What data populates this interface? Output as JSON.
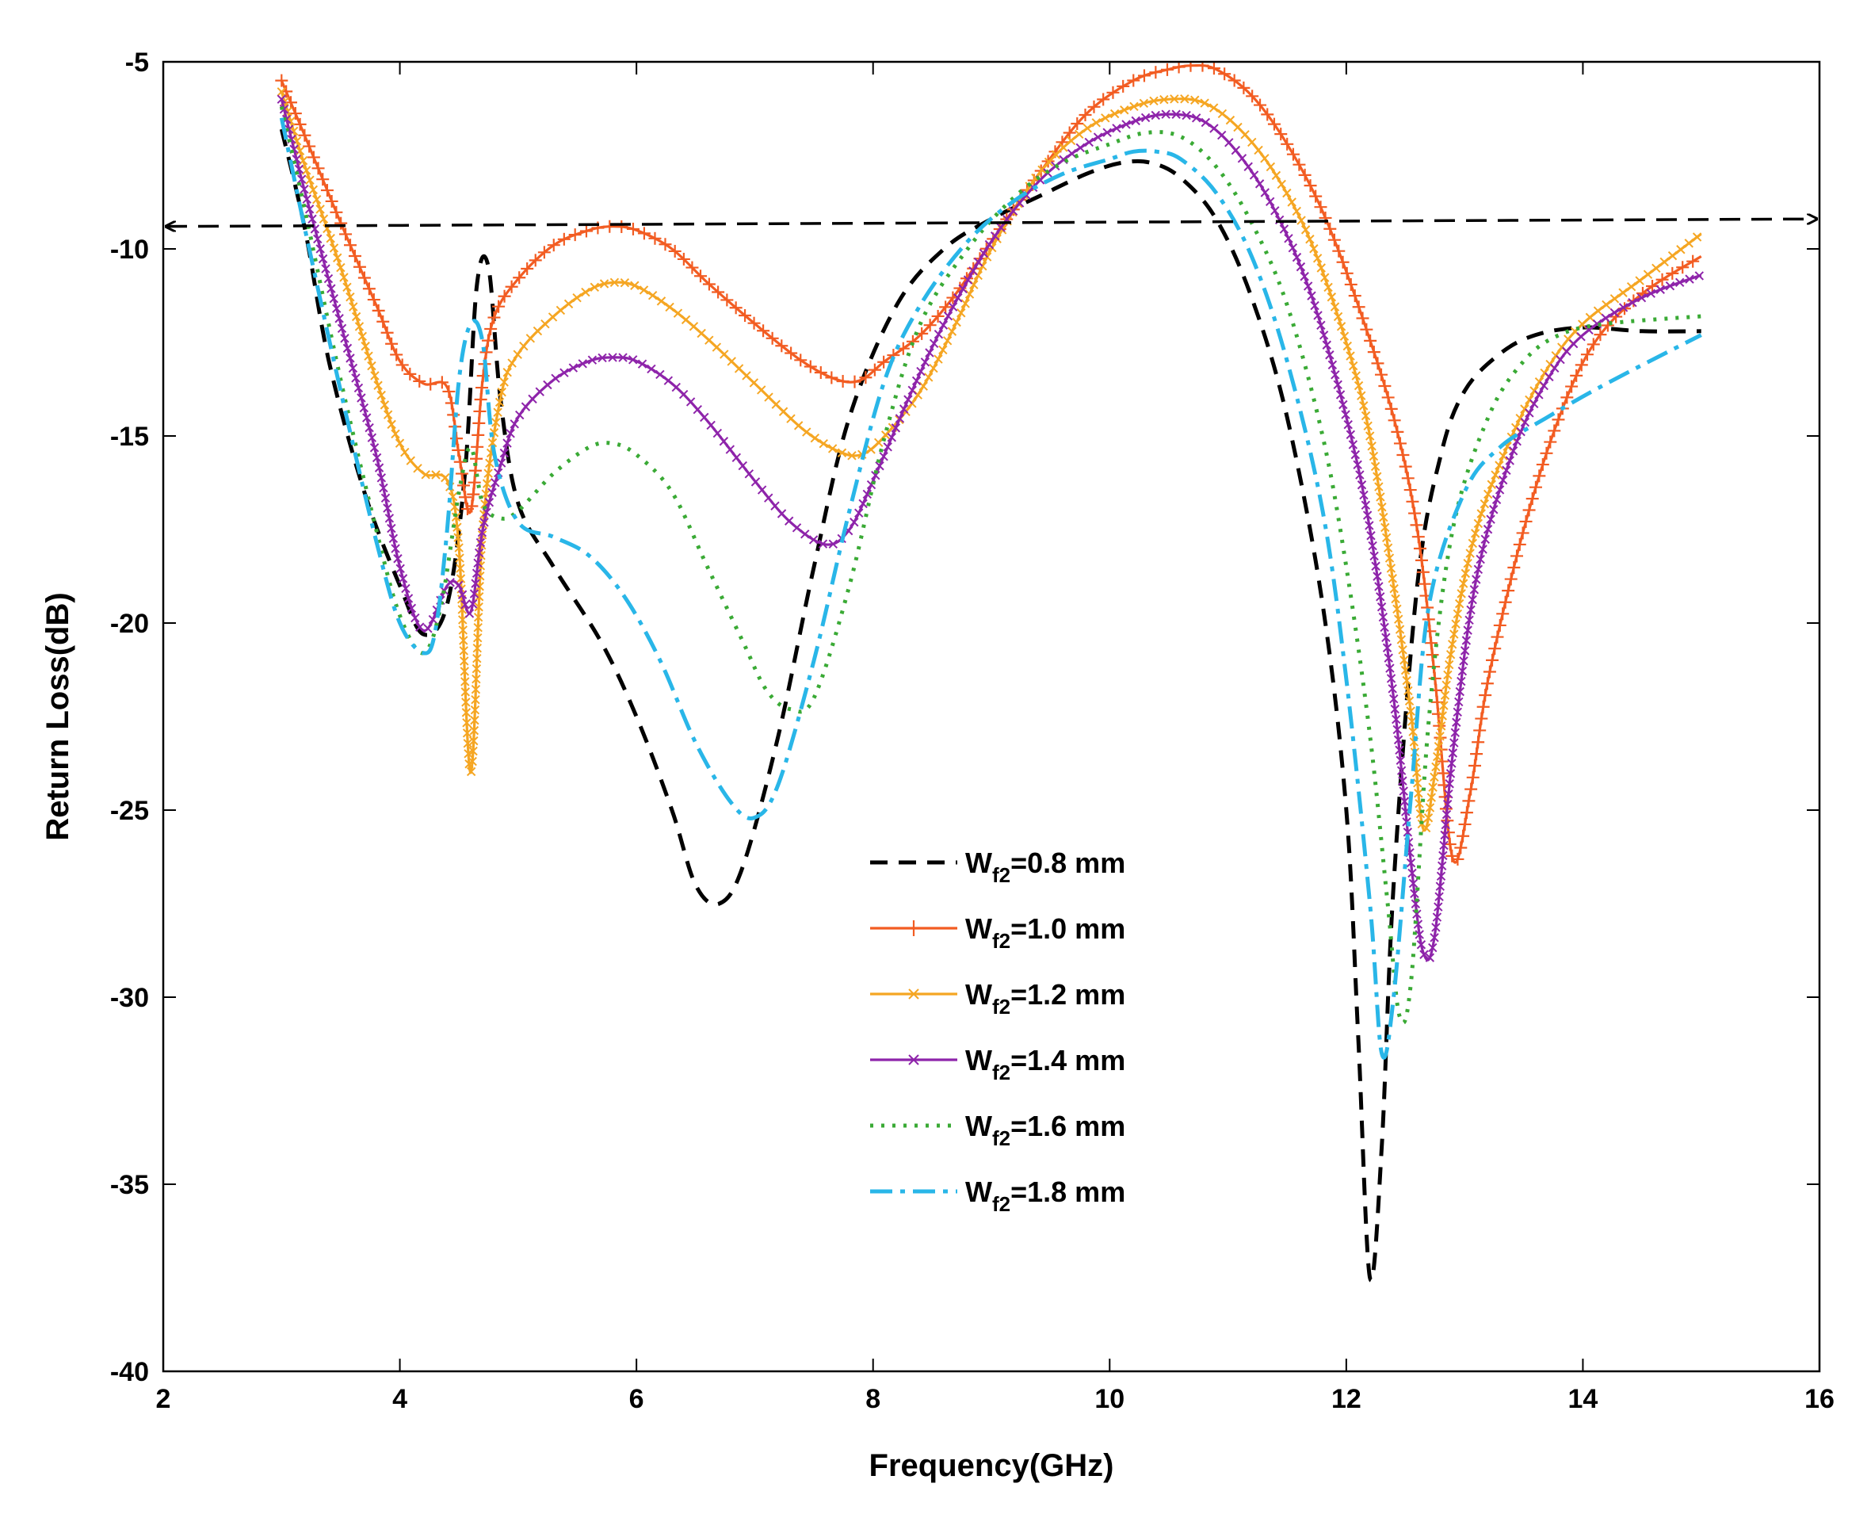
{
  "chart_data": {
    "type": "line",
    "title": "",
    "xlabel": "Frequency(GHz)",
    "ylabel": "Return Loss(dB)",
    "xlim": [
      2,
      16
    ],
    "ylim": [
      -40,
      -5
    ],
    "xticks": [
      2,
      4,
      6,
      8,
      10,
      12,
      14,
      16
    ],
    "yticks": [
      -5,
      -10,
      -15,
      -20,
      -25,
      -30,
      -35,
      -40
    ],
    "legend_position": "center",
    "reference_line": {
      "x": [
        2,
        16
      ],
      "y": [
        -9.4,
        -9.2
      ],
      "style": "dashed-double-arrow",
      "color": "#000000"
    },
    "series": [
      {
        "name": "W",
        "sub": "f2",
        "suffix": "=0.8 mm",
        "color": "#000000",
        "dash": "22,14",
        "marker": "none",
        "x": [
          3.0,
          3.2,
          3.4,
          3.7,
          4.0,
          4.2,
          4.4,
          4.55,
          4.65,
          4.75,
          4.85,
          5.0,
          5.3,
          5.7,
          6.0,
          6.3,
          6.5,
          6.7,
          6.9,
          7.2,
          7.5,
          7.8,
          8.2,
          8.6,
          9.0,
          9.4,
          9.8,
          10.1,
          10.35,
          10.6,
          10.9,
          11.2,
          11.5,
          11.8,
          12.0,
          12.1,
          12.2,
          12.3,
          12.4,
          12.6,
          12.8,
          13.0,
          13.3,
          13.6,
          14.0,
          14.5,
          15.0
        ],
        "y": [
          -6.8,
          -9.5,
          -13.0,
          -16.5,
          -19.0,
          -20.3,
          -19.5,
          -16.0,
          -11.0,
          -10.5,
          -14.0,
          -16.8,
          -18.5,
          -20.5,
          -22.5,
          -25.0,
          -27.0,
          -27.5,
          -26.5,
          -23.0,
          -18.5,
          -14.5,
          -11.5,
          -10.0,
          -9.2,
          -8.6,
          -8.0,
          -7.7,
          -7.7,
          -8.1,
          -9.2,
          -11.3,
          -14.5,
          -19.5,
          -25.0,
          -31.0,
          -37.5,
          -34.0,
          -27.0,
          -19.0,
          -15.5,
          -13.8,
          -12.8,
          -12.3,
          -12.1,
          -12.2,
          -12.2
        ]
      },
      {
        "name": "W",
        "sub": "f2",
        "suffix": "=1.0 mm",
        "color": "#f25c22",
        "dash": "",
        "marker": "plus",
        "x": [
          3.0,
          3.2,
          3.5,
          3.8,
          4.0,
          4.2,
          4.4,
          4.5,
          4.6,
          4.7,
          4.8,
          5.0,
          5.3,
          5.6,
          5.8,
          6.0,
          6.3,
          6.6,
          7.0,
          7.4,
          7.7,
          7.9,
          8.1,
          8.4,
          8.7,
          9.0,
          9.4,
          9.8,
          10.2,
          10.5,
          10.7,
          10.9,
          11.2,
          11.5,
          11.8,
          12.1,
          12.4,
          12.6,
          12.75,
          12.9,
          13.05,
          13.2,
          13.5,
          13.8,
          14.1,
          14.5,
          15.0
        ],
        "y": [
          -5.5,
          -7.0,
          -9.3,
          -11.5,
          -13.0,
          -13.6,
          -13.7,
          -15.5,
          -17.0,
          -13.5,
          -11.8,
          -10.8,
          -9.9,
          -9.5,
          -9.4,
          -9.5,
          -10.0,
          -10.9,
          -12.0,
          -13.0,
          -13.5,
          -13.5,
          -13.0,
          -12.3,
          -11.2,
          -9.8,
          -8.0,
          -6.4,
          -5.5,
          -5.2,
          -5.1,
          -5.2,
          -5.9,
          -7.2,
          -9.0,
          -11.5,
          -14.5,
          -17.5,
          -21.5,
          -26.3,
          -24.5,
          -21.5,
          -17.5,
          -14.5,
          -12.5,
          -11.2,
          -10.2
        ]
      },
      {
        "name": "W",
        "sub": "f2",
        "suffix": "=1.2 mm",
        "color": "#f5a623",
        "dash": "",
        "marker": "x",
        "x": [
          3.0,
          3.2,
          3.5,
          3.8,
          4.0,
          4.2,
          4.4,
          4.5,
          4.6,
          4.7,
          4.85,
          5.0,
          5.3,
          5.6,
          5.8,
          6.0,
          6.3,
          6.6,
          7.0,
          7.4,
          7.7,
          7.9,
          8.1,
          8.4,
          8.7,
          9.0,
          9.4,
          9.8,
          10.2,
          10.5,
          10.8,
          11.1,
          11.4,
          11.7,
          12.0,
          12.2,
          12.4,
          12.55,
          12.65,
          12.75,
          12.9,
          13.1,
          13.4,
          13.7,
          14.0,
          14.5,
          15.0
        ],
        "y": [
          -5.8,
          -7.8,
          -10.5,
          -13.5,
          -15.2,
          -16.0,
          -16.2,
          -18.0,
          -24.0,
          -17.5,
          -14.0,
          -12.8,
          -11.8,
          -11.1,
          -10.9,
          -11.0,
          -11.6,
          -12.4,
          -13.6,
          -14.8,
          -15.4,
          -15.5,
          -15.0,
          -13.8,
          -12.0,
          -10.0,
          -8.0,
          -6.8,
          -6.2,
          -6.0,
          -6.1,
          -6.8,
          -8.0,
          -9.8,
          -12.5,
          -15.0,
          -19.0,
          -22.5,
          -25.5,
          -24.0,
          -20.5,
          -17.5,
          -15.0,
          -13.2,
          -12.0,
          -10.8,
          -9.6
        ]
      },
      {
        "name": "W",
        "sub": "f2",
        "suffix": "=1.4 mm",
        "color": "#8e24aa",
        "dash": "",
        "marker": "x",
        "x": [
          3.0,
          3.2,
          3.5,
          3.8,
          4.0,
          4.2,
          4.4,
          4.5,
          4.6,
          4.7,
          4.85,
          5.0,
          5.3,
          5.6,
          5.8,
          6.0,
          6.3,
          6.6,
          7.0,
          7.3,
          7.6,
          7.8,
          8.0,
          8.3,
          8.6,
          9.0,
          9.4,
          9.8,
          10.2,
          10.5,
          10.8,
          11.1,
          11.4,
          11.7,
          12.0,
          12.2,
          12.4,
          12.55,
          12.65,
          12.75,
          12.9,
          13.1,
          13.4,
          13.7,
          14.0,
          14.5,
          15.0
        ],
        "y": [
          -6.0,
          -8.5,
          -12.0,
          -15.5,
          -18.5,
          -20.2,
          -19.0,
          -19.0,
          -19.7,
          -17.5,
          -15.8,
          -14.5,
          -13.5,
          -13.0,
          -12.9,
          -13.0,
          -13.6,
          -14.6,
          -16.2,
          -17.3,
          -17.9,
          -17.5,
          -16.2,
          -14.0,
          -12.0,
          -9.8,
          -8.2,
          -7.2,
          -6.6,
          -6.4,
          -6.6,
          -7.5,
          -9.0,
          -11.2,
          -14.5,
          -17.5,
          -22.0,
          -26.5,
          -28.8,
          -28.3,
          -23.5,
          -18.8,
          -15.5,
          -13.5,
          -12.3,
          -11.3,
          -10.7
        ]
      },
      {
        "name": "W",
        "sub": "f2",
        "suffix": "=1.6 mm",
        "color": "#3aaa35",
        "dash": "4,10",
        "marker": "none",
        "x": [
          3.0,
          3.2,
          3.5,
          3.8,
          4.0,
          4.2,
          4.35,
          4.5,
          4.6,
          4.7,
          4.85,
          5.0,
          5.3,
          5.6,
          5.8,
          6.0,
          6.3,
          6.6,
          6.9,
          7.1,
          7.3,
          7.5,
          7.8,
          8.1,
          8.4,
          8.8,
          9.2,
          9.6,
          10.0,
          10.3,
          10.6,
          10.9,
          11.2,
          11.5,
          11.8,
          12.0,
          12.2,
          12.35,
          12.45,
          12.55,
          12.7,
          12.9,
          13.2,
          13.5,
          13.8,
          14.2,
          15.0
        ],
        "y": [
          -6.2,
          -9.0,
          -13.5,
          -17.5,
          -19.8,
          -20.8,
          -19.5,
          -16.5,
          -15.3,
          -16.8,
          -17.2,
          -17.0,
          -16.0,
          -15.3,
          -15.2,
          -15.5,
          -16.5,
          -18.5,
          -20.5,
          -21.8,
          -22.3,
          -22.0,
          -19.0,
          -15.0,
          -12.0,
          -10.0,
          -8.6,
          -7.7,
          -7.2,
          -6.9,
          -7.0,
          -7.8,
          -9.3,
          -11.5,
          -15.0,
          -18.5,
          -23.0,
          -27.5,
          -30.5,
          -29.5,
          -22.5,
          -17.5,
          -14.5,
          -13.0,
          -12.3,
          -12.0,
          -11.8
        ]
      },
      {
        "name": "W",
        "sub": "f2",
        "suffix": "=1.8 mm",
        "color": "#29b6e8",
        "dash": "28,10,6,10",
        "marker": "none",
        "x": [
          3.0,
          3.2,
          3.5,
          3.8,
          4.0,
          4.2,
          4.3,
          4.4,
          4.5,
          4.6,
          4.7,
          4.8,
          5.0,
          5.3,
          5.6,
          5.9,
          6.2,
          6.5,
          6.8,
          7.0,
          7.2,
          7.5,
          7.8,
          8.1,
          8.4,
          8.8,
          9.2,
          9.6,
          10.0,
          10.2,
          10.4,
          10.6,
          10.9,
          11.2,
          11.5,
          11.8,
          12.0,
          12.2,
          12.3,
          12.4,
          12.55,
          12.7,
          13.0,
          13.3,
          13.7,
          14.2,
          15.0
        ],
        "y": [
          -6.5,
          -9.5,
          -13.8,
          -17.8,
          -20.0,
          -20.8,
          -20.2,
          -17.5,
          -13.5,
          -12.0,
          -12.5,
          -15.5,
          -17.3,
          -17.7,
          -18.2,
          -19.3,
          -21.0,
          -23.2,
          -24.8,
          -25.2,
          -24.3,
          -21.0,
          -17.0,
          -13.5,
          -11.5,
          -9.8,
          -8.7,
          -8.0,
          -7.6,
          -7.4,
          -7.4,
          -7.6,
          -8.5,
          -10.2,
          -13.0,
          -17.0,
          -21.5,
          -27.5,
          -31.5,
          -30.0,
          -24.5,
          -19.5,
          -16.5,
          -15.3,
          -14.5,
          -13.6,
          -12.3
        ]
      }
    ]
  }
}
